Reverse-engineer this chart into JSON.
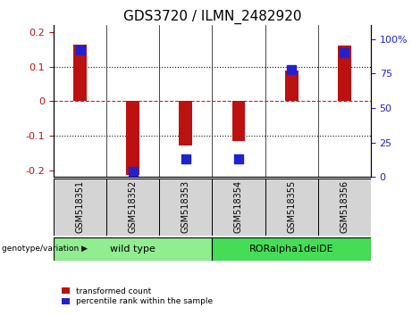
{
  "title": "GDS3720 / ILMN_2482920",
  "samples": [
    "GSM518351",
    "GSM518352",
    "GSM518353",
    "GSM518354",
    "GSM518355",
    "GSM518356"
  ],
  "red_values": [
    0.165,
    -0.215,
    -0.13,
    -0.115,
    0.09,
    0.16
  ],
  "blue_values": [
    92,
    4,
    13,
    13,
    78,
    90
  ],
  "ylim_left": [
    -0.22,
    0.22
  ],
  "ylim_right": [
    0,
    110
  ],
  "yticks_left": [
    -0.2,
    -0.1,
    0.0,
    0.1,
    0.2
  ],
  "ytick_labels_left": [
    "-0.2",
    "-0.1",
    "0",
    "0.1",
    "0.2"
  ],
  "yticks_right": [
    0,
    25,
    50,
    75,
    100
  ],
  "ytick_labels_right": [
    "0",
    "25",
    "50",
    "75",
    "100%"
  ],
  "group_configs": [
    {
      "start": 0,
      "end": 2,
      "label": "wild type",
      "color": "#90EE90"
    },
    {
      "start": 3,
      "end": 5,
      "label": "RORalpha1delDE",
      "color": "#44DD55"
    }
  ],
  "group_label": "genotype/variation",
  "red_color": "#BB1111",
  "blue_color": "#2222CC",
  "bar_width": 0.25,
  "blue_square_size": 45,
  "legend_red": "transformed count",
  "legend_blue": "percentile rank within the sample",
  "dashed_zero_color": "#CC2222",
  "dotted_grid_color": "#111111",
  "title_fontsize": 11,
  "tick_fontsize": 8,
  "sample_fontsize": 7
}
